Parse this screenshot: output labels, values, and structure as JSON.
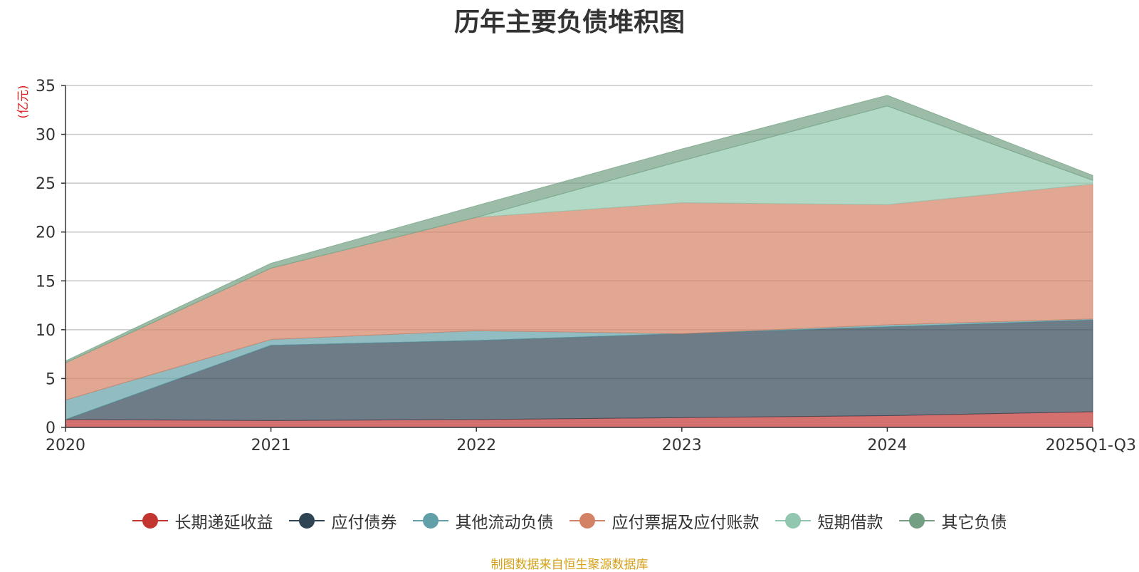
{
  "chart_data": {
    "type": "area",
    "stacked": true,
    "title": "历年主要负债堆积图",
    "ylabel": "(亿元)",
    "xlabel": "",
    "categories": [
      "2020",
      "2021",
      "2022",
      "2023",
      "2024",
      "2025Q1-Q3"
    ],
    "ylim": [
      0,
      35
    ],
    "yticks": [
      0,
      5,
      10,
      15,
      20,
      25,
      30,
      35
    ],
    "grid": true,
    "legend_position": "bottom",
    "series": [
      {
        "name": "长期递延收益",
        "color": "#c23531",
        "values": [
          0.8,
          0.7,
          0.8,
          1.0,
          1.2,
          1.6
        ]
      },
      {
        "name": "应付债券",
        "color": "#2f4554",
        "values": [
          0.0,
          7.7,
          8.1,
          8.6,
          9.1,
          9.4
        ]
      },
      {
        "name": "其他流动负债",
        "color": "#61a0a8",
        "values": [
          2.0,
          0.6,
          1.0,
          0.0,
          0.2,
          0.1
        ]
      },
      {
        "name": "应付票据及应付账款",
        "color": "#d48265",
        "values": [
          3.8,
          7.3,
          11.6,
          13.4,
          12.3,
          13.8
        ]
      },
      {
        "name": "短期借款",
        "color": "#91c7ae",
        "values": [
          0.0,
          0.0,
          0.0,
          4.3,
          10.1,
          0.4
        ]
      },
      {
        "name": "其它负债",
        "color": "#749f83",
        "values": [
          0.2,
          0.5,
          1.2,
          1.2,
          1.1,
          0.5
        ]
      }
    ]
  },
  "source_note": "制图数据来自恒生聚源数据库"
}
